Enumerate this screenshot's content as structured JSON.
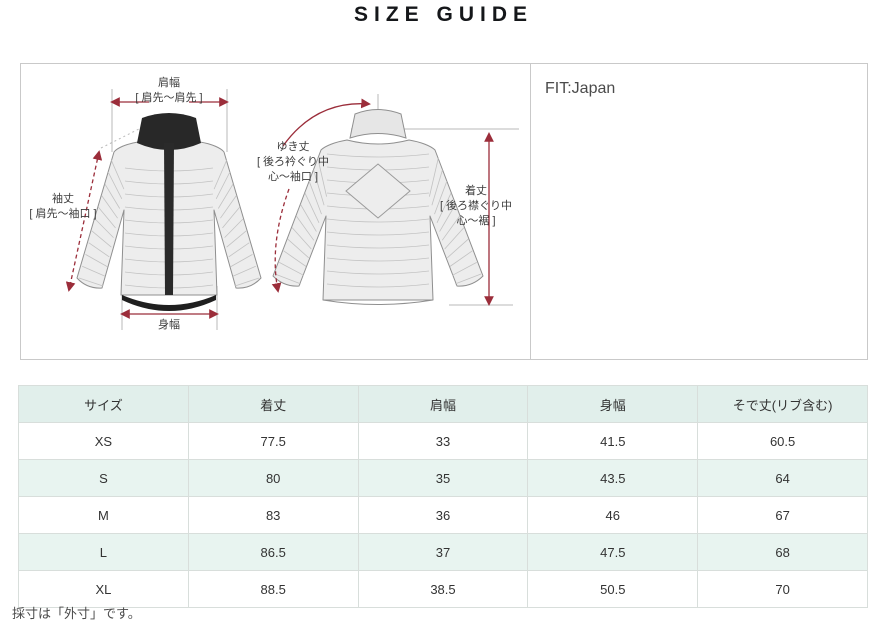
{
  "page": {
    "title": "SIZE GUIDE",
    "note": "採寸は「外寸」です。"
  },
  "diagram": {
    "fit_label": "FIT:Japan",
    "labels": {
      "shoulder_width": {
        "line1": "肩幅",
        "line2": "[ 肩先〜肩先 ]"
      },
      "sleeve_length": {
        "line1": "袖丈",
        "line2": "[ 肩先〜袖口 ]"
      },
      "yuki_length": {
        "line1": "ゆき丈",
        "line2": "[ 後ろ衿ぐり中",
        "line3": "心〜袖口 ]"
      },
      "body_length": {
        "line1": "着丈",
        "line2": "[ 後ろ襟ぐり中",
        "line3": "心〜裾 ]"
      },
      "body_width": {
        "line1": "身幅"
      }
    }
  },
  "table": {
    "headers": [
      "サイズ",
      "着丈",
      "肩幅",
      "身幅",
      "そで丈(リブ含む)"
    ],
    "rows": [
      [
        "XS",
        "77.5",
        "33",
        "41.5",
        "60.5"
      ],
      [
        "S",
        "80",
        "35",
        "43.5",
        "64"
      ],
      [
        "M",
        "83",
        "36",
        "46",
        "67"
      ],
      [
        "L",
        "86.5",
        "37",
        "47.5",
        "68"
      ],
      [
        "XL",
        "88.5",
        "38.5",
        "50.5",
        "70"
      ]
    ]
  },
  "colors": {
    "accent_red": "#9b2d3a",
    "table_header_bg": "#e1efeb",
    "table_alt_row_bg": "#e8f4f0",
    "box_border": "#c9c9c9"
  }
}
